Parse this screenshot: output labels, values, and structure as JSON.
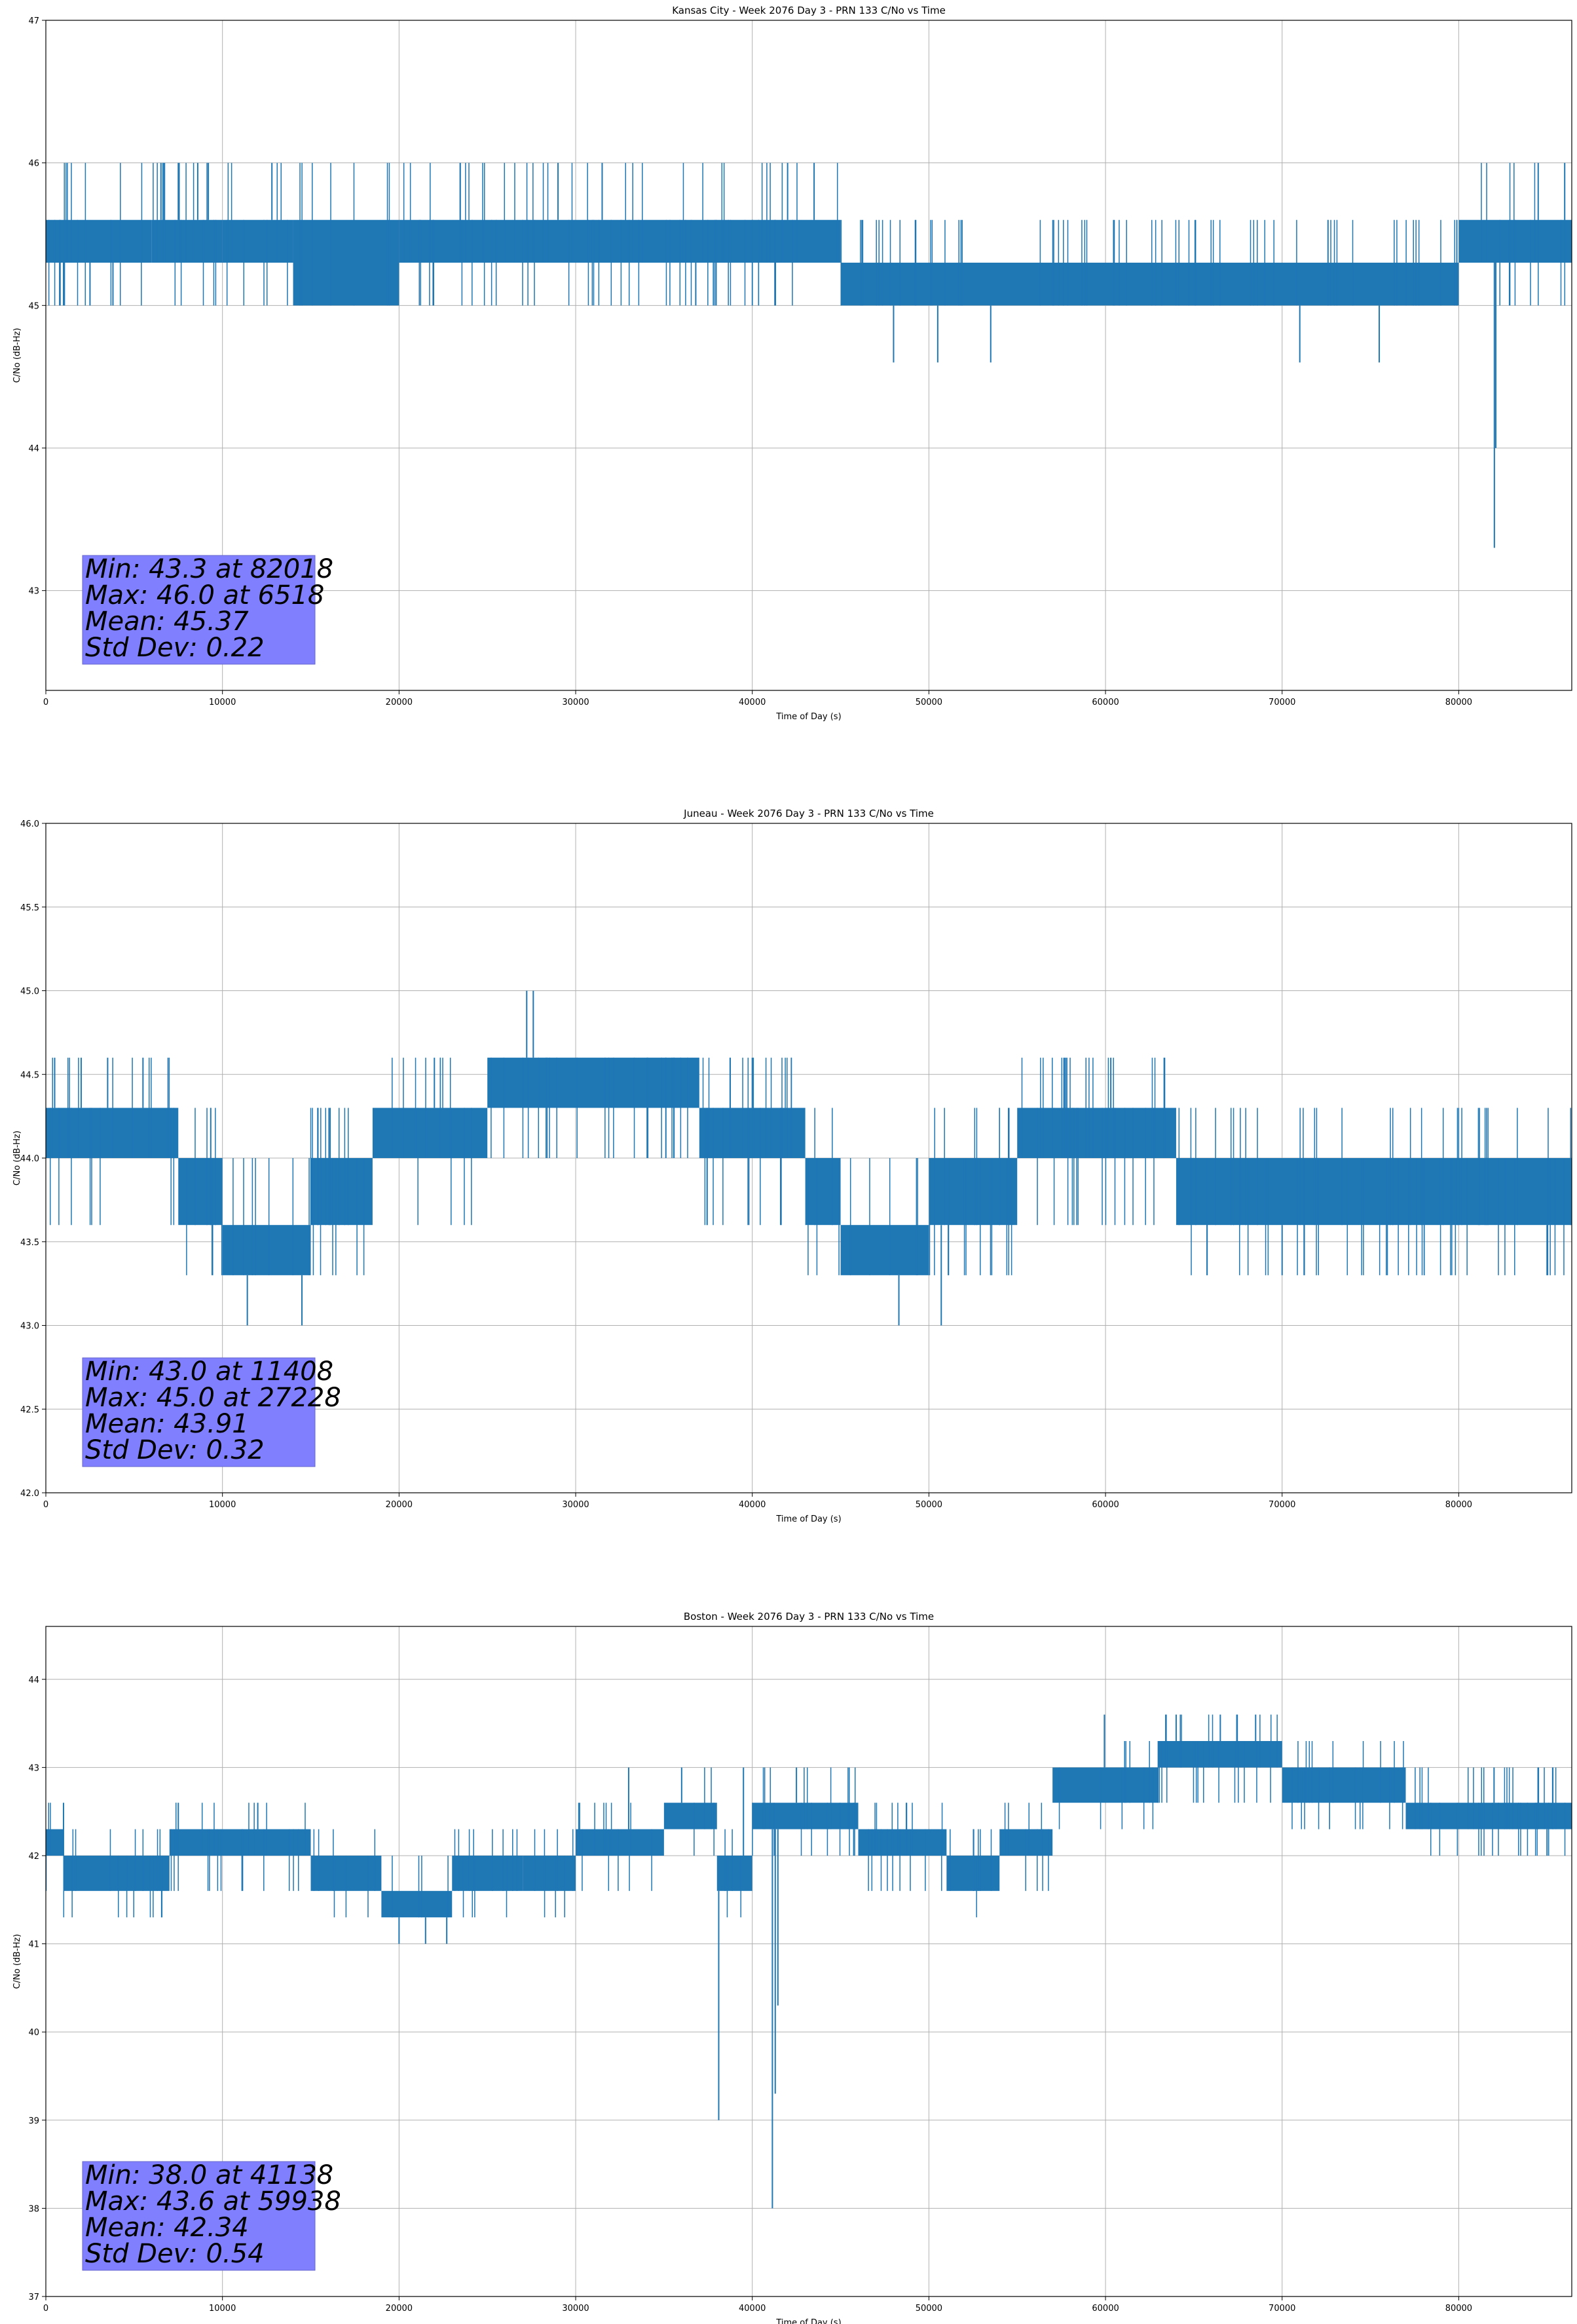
{
  "figure": {
    "background": "#ffffff",
    "series_color": "#1f77b4",
    "grid_color": "#b0b0b0",
    "stats_box_color": "#8080ff"
  },
  "chart_data": [
    {
      "type": "line",
      "title": "Kansas City - Week 2076 Day 3 - PRN 133 C/No vs Time",
      "xlabel": "Time of Day (s)",
      "ylabel": "C/No (dB-Hz)",
      "xlim": [
        0,
        86400
      ],
      "ylim": [
        42.3,
        47.0
      ],
      "xticks": [
        0,
        10000,
        20000,
        30000,
        40000,
        50000,
        60000,
        70000,
        80000
      ],
      "xtick_labels": [
        "0",
        "10000",
        "20000",
        "30000",
        "40000",
        "50000",
        "60000",
        "70000",
        "80000"
      ],
      "yticks": [
        43,
        44,
        45,
        46,
        47
      ],
      "ytick_labels": [
        "43",
        "44",
        "45",
        "46",
        "47"
      ],
      "levels": [
        45.0,
        45.3,
        45.6,
        46.0
      ],
      "band_segments": [
        [
          0,
          6000,
          45.3,
          45.6
        ],
        [
          6000,
          10000,
          45.3,
          45.6
        ],
        [
          10000,
          14000,
          45.3,
          45.6
        ],
        [
          14000,
          20000,
          45.0,
          45.6
        ],
        [
          20000,
          45000,
          45.3,
          45.6
        ],
        [
          45000,
          80000,
          45.0,
          45.3
        ],
        [
          80000,
          86400,
          45.3,
          45.6
        ]
      ],
      "spikes": [
        [
          82018,
          43.3
        ],
        [
          82100,
          44.0
        ],
        [
          6518,
          46.0
        ],
        [
          7500,
          46.0
        ],
        [
          8600,
          46.0
        ],
        [
          9200,
          46.0
        ],
        [
          12800,
          46.0
        ],
        [
          29000,
          46.0
        ],
        [
          31500,
          46.0
        ],
        [
          42000,
          46.0
        ],
        [
          43500,
          46.0
        ],
        [
          84500,
          46.0
        ],
        [
          86000,
          46.0
        ],
        [
          48000,
          44.6
        ],
        [
          50500,
          44.6
        ],
        [
          53500,
          44.6
        ],
        [
          71000,
          44.6
        ],
        [
          75500,
          44.6
        ],
        [
          1000,
          45.0
        ],
        [
          2500,
          45.0
        ],
        [
          3800,
          45.0
        ],
        [
          36800,
          45.0
        ],
        [
          37800,
          45.0
        ]
      ],
      "stats": {
        "min": "Min: 43.3 at 82018",
        "max": "Max: 46.0 at 6518",
        "mean": "Mean: 45.37",
        "std": "Std Dev: 0.22"
      }
    },
    {
      "type": "line",
      "title": "Juneau - Week 2076 Day 3 - PRN 133 C/No vs Time",
      "xlabel": "Time of Day (s)",
      "ylabel": "C/No (dB-Hz)",
      "xlim": [
        0,
        86400
      ],
      "ylim": [
        42.0,
        46.0
      ],
      "xticks": [
        0,
        10000,
        20000,
        30000,
        40000,
        50000,
        60000,
        70000,
        80000
      ],
      "xtick_labels": [
        "0",
        "10000",
        "20000",
        "30000",
        "40000",
        "50000",
        "60000",
        "70000",
        "80000"
      ],
      "yticks": [
        42.0,
        42.5,
        43.0,
        43.5,
        44.0,
        44.5,
        45.0,
        45.5,
        46.0
      ],
      "ytick_labels": [
        "42.0",
        "42.5",
        "43.0",
        "43.5",
        "44.0",
        "44.5",
        "45.0",
        "45.5",
        "46.0"
      ],
      "levels": [
        43.3,
        43.6,
        44.0,
        44.3,
        44.6
      ],
      "band_segments": [
        [
          0,
          7500,
          44.0,
          44.3
        ],
        [
          7500,
          10000,
          43.6,
          44.0
        ],
        [
          10000,
          15000,
          43.3,
          43.6
        ],
        [
          15000,
          18500,
          43.6,
          44.0
        ],
        [
          18500,
          25000,
          44.0,
          44.3
        ],
        [
          25000,
          37000,
          44.3,
          44.6
        ],
        [
          37000,
          43000,
          44.0,
          44.3
        ],
        [
          43000,
          45000,
          43.6,
          44.0
        ],
        [
          45000,
          50000,
          43.3,
          43.6
        ],
        [
          50000,
          55000,
          43.6,
          44.0
        ],
        [
          55000,
          64000,
          44.0,
          44.3
        ],
        [
          64000,
          86400,
          43.6,
          44.0
        ]
      ],
      "spikes": [
        [
          11408,
          43.0
        ],
        [
          14500,
          43.0
        ],
        [
          48300,
          43.0
        ],
        [
          50700,
          43.0
        ],
        [
          27228,
          45.0
        ],
        [
          27600,
          45.0
        ],
        [
          60300,
          44.6
        ],
        [
          500,
          44.6
        ],
        [
          2000,
          44.6
        ],
        [
          3500,
          44.6
        ],
        [
          5500,
          44.6
        ],
        [
          22000,
          44.6
        ],
        [
          40000,
          44.6
        ],
        [
          70000,
          43.3
        ],
        [
          85000,
          43.3
        ]
      ],
      "stats": {
        "min": "Min: 43.0 at 11408",
        "max": "Max: 45.0 at 27228",
        "mean": "Mean: 43.91",
        "std": "Std Dev: 0.32"
      }
    },
    {
      "type": "line",
      "title": "Boston - Week 2076 Day 3 - PRN 133 C/No vs Time",
      "xlabel": "Time of Day (s)",
      "ylabel": "C/No (dB-Hz)",
      "xlim": [
        0,
        86400
      ],
      "ylim": [
        37.0,
        44.6
      ],
      "xticks": [
        0,
        10000,
        20000,
        30000,
        40000,
        50000,
        60000,
        70000,
        80000
      ],
      "xtick_labels": [
        "0",
        "10000",
        "20000",
        "30000",
        "40000",
        "50000",
        "60000",
        "70000",
        "80000"
      ],
      "yticks": [
        37,
        38,
        39,
        40,
        41,
        42,
        43,
        44
      ],
      "ytick_labels": [
        "37",
        "38",
        "39",
        "40",
        "41",
        "42",
        "43",
        "44"
      ],
      "levels": [
        41.3,
        41.6,
        42.0,
        42.3,
        42.6,
        43.0,
        43.3,
        43.6
      ],
      "band_segments": [
        [
          0,
          1000,
          42.0,
          42.3
        ],
        [
          1000,
          7000,
          41.6,
          42.0
        ],
        [
          7000,
          15000,
          42.0,
          42.3
        ],
        [
          15000,
          19000,
          41.6,
          42.0
        ],
        [
          19000,
          23000,
          41.3,
          41.6
        ],
        [
          23000,
          27000,
          41.6,
          42.0
        ],
        [
          27000,
          30000,
          41.6,
          42.0
        ],
        [
          30000,
          35000,
          42.0,
          42.3
        ],
        [
          35000,
          38000,
          42.3,
          42.6
        ],
        [
          38000,
          40000,
          41.6,
          42.0
        ],
        [
          40000,
          46000,
          42.3,
          42.6
        ],
        [
          46000,
          51000,
          42.0,
          42.3
        ],
        [
          51000,
          54000,
          41.6,
          42.0
        ],
        [
          54000,
          57000,
          42.0,
          42.3
        ],
        [
          57000,
          63000,
          42.6,
          43.0
        ],
        [
          63000,
          70000,
          43.0,
          43.3
        ],
        [
          70000,
          77000,
          42.6,
          43.0
        ],
        [
          77000,
          86400,
          42.3,
          42.6
        ]
      ],
      "spikes": [
        [
          41138,
          38.0
        ],
        [
          41300,
          39.3
        ],
        [
          41450,
          40.3
        ],
        [
          38100,
          39.0
        ],
        [
          59938,
          43.6
        ],
        [
          64000,
          43.6
        ],
        [
          66500,
          43.6
        ],
        [
          68500,
          43.6
        ],
        [
          33000,
          43.0
        ],
        [
          36000,
          43.0
        ],
        [
          39500,
          43.0
        ],
        [
          42500,
          43.0
        ],
        [
          20000,
          41.0
        ],
        [
          21500,
          41.0
        ],
        [
          22700,
          41.0
        ],
        [
          1000,
          42.6
        ],
        [
          7500,
          42.6
        ],
        [
          12000,
          42.6
        ],
        [
          82000,
          43.0
        ],
        [
          85000,
          42.0
        ]
      ],
      "stats": {
        "min": "Min: 38.0 at 41138",
        "max": "Max: 43.6 at 59938",
        "mean": "Mean: 42.34",
        "std": "Std Dev: 0.54"
      }
    }
  ]
}
